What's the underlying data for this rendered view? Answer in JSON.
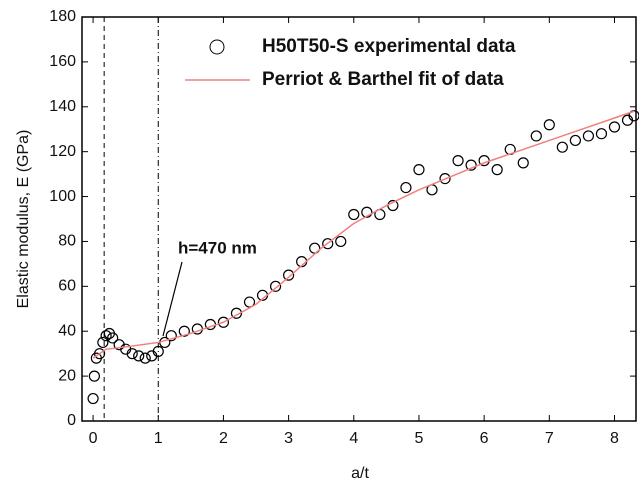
{
  "chart_data": {
    "type": "scatter-line",
    "x_label": "a/t",
    "y_label": "Elastic modulus, E (GPa)",
    "xlim": [
      -0.17,
      8.33
    ],
    "ylim": [
      0,
      180
    ],
    "xticks": [
      0,
      1,
      2,
      3,
      4,
      5,
      6,
      7,
      8
    ],
    "yticks": [
      0,
      20,
      40,
      60,
      80,
      100,
      120,
      140,
      160,
      180
    ],
    "vlines": [
      0.17,
      1
    ],
    "annotation": "h=470 nm",
    "legend": "upper right",
    "series": [
      {
        "name": "H50T50-S experimental data",
        "color": "#000000",
        "marker": "open-circle",
        "x": [
          0,
          0.02,
          0.05,
          0.1,
          0.15,
          0.2,
          0.25,
          0.3,
          0.4,
          0.5,
          0.6,
          0.7,
          0.8,
          0.9,
          1.0,
          1.1,
          1.2,
          1.4,
          1.6,
          1.8,
          2.0,
          2.2,
          2.4,
          2.6,
          2.8,
          3.0,
          3.2,
          3.4,
          3.6,
          3.8,
          4.0,
          4.2,
          4.4,
          4.6,
          4.8,
          5.0,
          5.2,
          5.4,
          5.6,
          5.8,
          6.0,
          6.2,
          6.4,
          6.6,
          6.8,
          7.0,
          7.2,
          7.4,
          7.6,
          7.8,
          8.0,
          8.2,
          8.3
        ],
        "values": [
          10,
          20,
          28,
          30,
          35,
          38,
          39,
          37,
          34,
          32,
          30,
          29,
          28,
          29,
          31,
          35,
          38,
          40,
          41,
          43,
          44,
          48,
          53,
          56,
          60,
          65,
          71,
          77,
          79,
          80,
          92,
          93,
          92,
          96,
          104,
          112,
          103,
          108,
          116,
          114,
          116,
          112,
          121,
          115,
          127,
          132,
          122,
          125,
          127,
          128,
          131,
          134,
          136
        ]
      },
      {
        "name": "Perriot & Barthel fit of data",
        "color": "#f08080",
        "marker": "line",
        "x": [
          0,
          0.2,
          0.5,
          1,
          1.5,
          2,
          2.5,
          3,
          3.5,
          4,
          4.5,
          5,
          5.5,
          6,
          6.5,
          7,
          7.5,
          8,
          8.3
        ],
        "values": [
          28,
          32,
          33,
          35,
          39,
          44,
          52,
          64,
          77,
          88,
          96,
          103,
          109,
          115,
          120,
          125,
          130,
          135,
          138
        ]
      }
    ]
  }
}
